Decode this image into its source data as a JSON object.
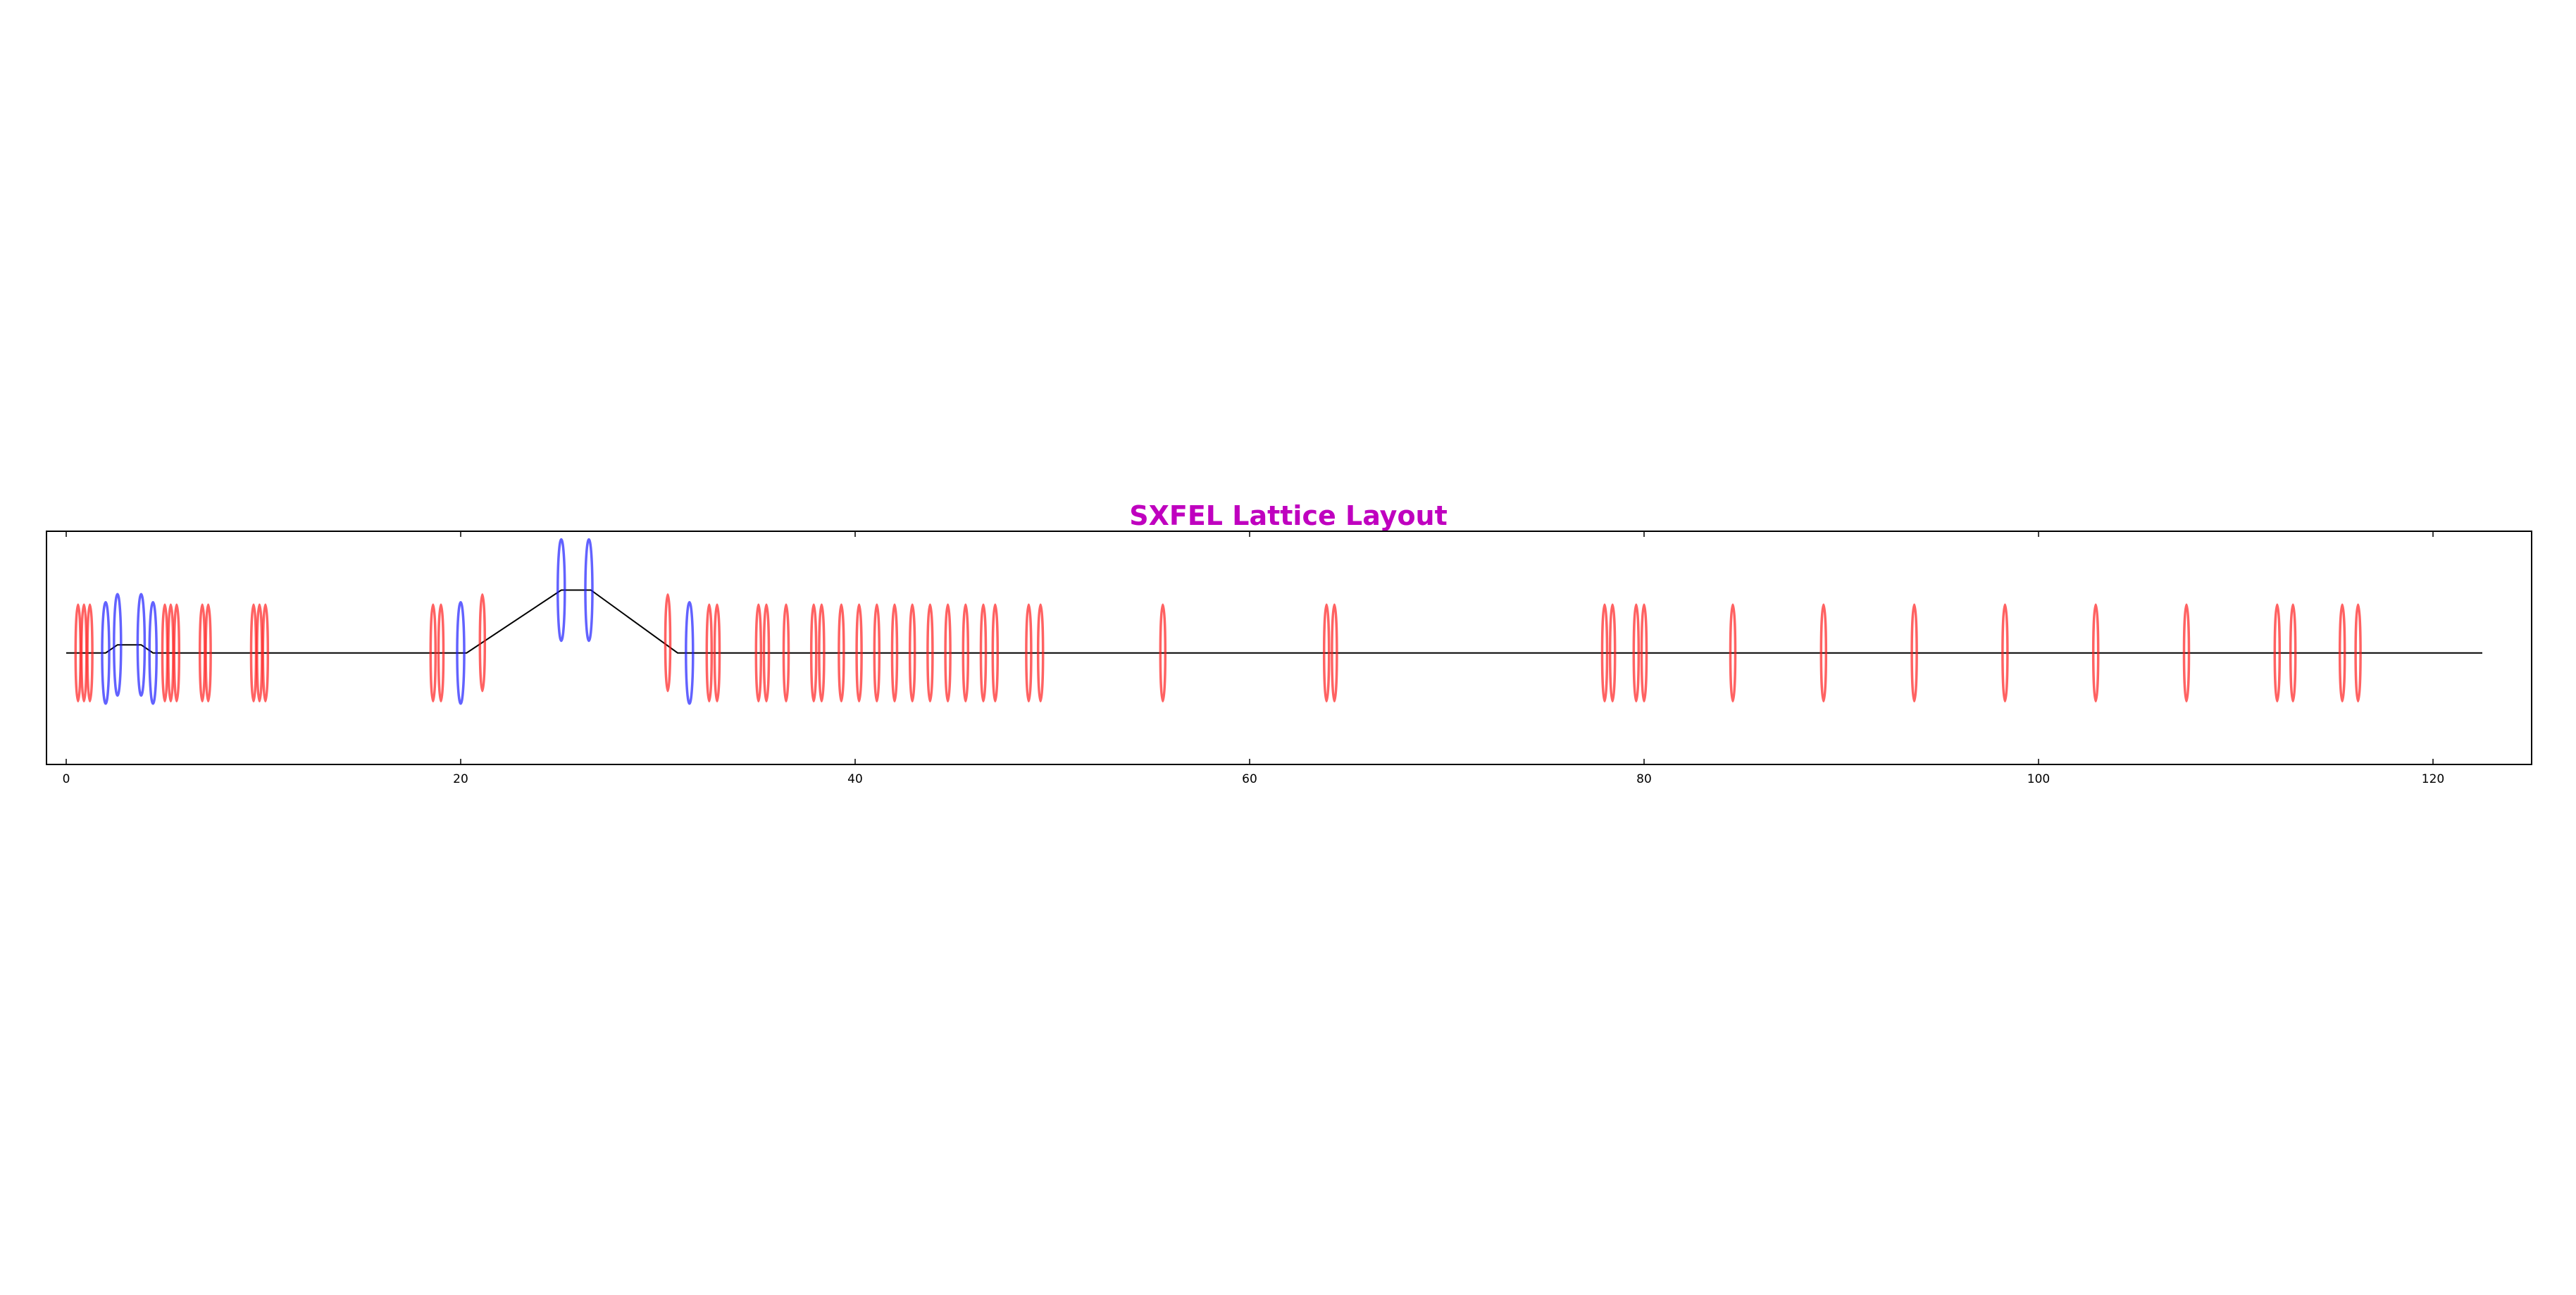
{
  "chart_data": {
    "type": "scatter",
    "title": "SXFEL Lattice Layout",
    "xlabel": "",
    "ylabel": "",
    "xlim": [
      -1,
      125
    ],
    "ylim": [
      -1.1,
      1.2
    ],
    "xticks": [
      0,
      20,
      40,
      60,
      80,
      100,
      120
    ],
    "grid": false,
    "colors": {
      "title": "#bf00bf",
      "quadrupole": "#ff2020",
      "dipole": "#2020ff",
      "beamline": "#000000",
      "axes": "#000000"
    },
    "beamline": {
      "name": "",
      "x": [
        0.0,
        2.0,
        2.6,
        3.8,
        4.4,
        19.7,
        20.3,
        25.1,
        26.6,
        31.0,
        31.7,
        122.5
      ],
      "y": [
        0.0,
        0.0,
        0.08,
        0.08,
        0.0,
        0.0,
        0.0,
        0.62,
        0.62,
        0.0,
        0.0,
        0.0
      ]
    },
    "series": [
      {
        "name": "",
        "element": "quadrupole",
        "x": [
          0.6,
          0.9,
          1.2,
          5.0,
          5.3,
          5.6,
          6.9,
          7.2,
          9.5,
          9.8,
          10.1,
          18.6,
          19.0,
          21.1,
          30.5,
          32.6,
          33.0,
          35.1,
          35.5,
          36.5,
          37.9,
          38.3,
          39.3,
          40.2,
          41.1,
          42.0,
          42.9,
          43.8,
          44.7,
          45.6,
          46.5,
          47.1,
          48.8,
          49.4,
          55.6,
          63.9,
          64.3,
          78.0,
          78.4,
          79.6,
          80.0,
          84.5,
          89.1,
          93.7,
          98.3,
          102.9,
          107.5,
          112.1,
          112.9,
          115.4,
          116.2
        ],
        "y": [
          0,
          0,
          0,
          0,
          0,
          0,
          0,
          0,
          0,
          0,
          0,
          0,
          0,
          0.1,
          0.1,
          0,
          0,
          0,
          0,
          0,
          0,
          0,
          0,
          0,
          0,
          0,
          0,
          0,
          0,
          0,
          0,
          0,
          0,
          0,
          0,
          0,
          0,
          0,
          0,
          0,
          0,
          0,
          0,
          0,
          0,
          0,
          0,
          0,
          0,
          0,
          0
        ],
        "height": [
          0.95,
          0.95,
          0.95,
          0.95,
          0.95,
          0.95,
          0.95,
          0.95,
          0.95,
          0.95,
          0.95,
          0.95,
          0.95,
          0.95,
          0.95,
          0.95,
          0.95,
          0.95,
          0.95,
          0.95,
          0.95,
          0.95,
          0.95,
          0.95,
          0.95,
          0.95,
          0.95,
          0.95,
          0.95,
          0.95,
          0.95,
          0.95,
          0.95,
          0.95,
          0.95,
          0.95,
          0.95,
          0.95,
          0.95,
          0.95,
          0.95,
          0.95,
          0.95,
          0.95,
          0.95,
          0.95,
          0.95,
          0.95,
          0.95,
          0.95,
          0.95
        ]
      },
      {
        "name": "",
        "element": "dipole",
        "x": [
          2.0,
          2.6,
          3.8,
          4.4,
          20.0,
          25.1,
          26.5,
          31.6
        ],
        "y": [
          0,
          0.08,
          0.08,
          0,
          0,
          0.62,
          0.62,
          0
        ],
        "height": [
          1.0,
          1.0,
          1.0,
          1.0,
          1.0,
          1.0,
          1.0,
          1.0
        ]
      }
    ]
  }
}
